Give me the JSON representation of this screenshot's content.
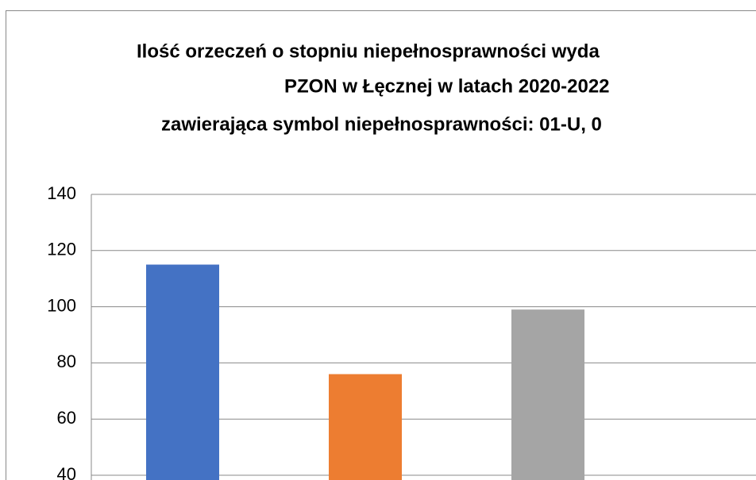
{
  "chart_data": {
    "type": "bar",
    "title": [
      "Ilość orzeczeń o stopniu niepełnosprawności wyda",
      "PZON w Łęcznej w latach 2020-2022",
      "zawierająca symbol niepełnosprawności: 01-U, 0"
    ],
    "values": [
      115,
      76,
      99
    ],
    "colors": [
      "#4472c4",
      "#ed7d31",
      "#a5a5a5"
    ],
    "ylim": [
      40,
      140
    ],
    "yticks": [
      40,
      60,
      80,
      100,
      120,
      140
    ],
    "grid": true
  }
}
